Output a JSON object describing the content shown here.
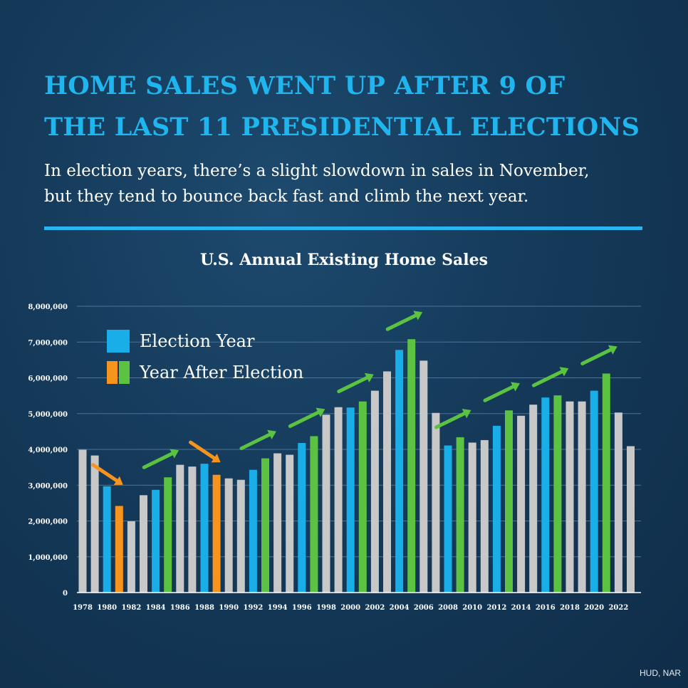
{
  "header": {
    "title_line1": "HOME SALES WENT UP AFTER 9 OF",
    "title_line2": "THE LAST 11 PRESIDENTIAL ELECTIONS",
    "subtitle_line1": "In election years, there’s a slight slowdown in sales in November,",
    "subtitle_line2": "but they tend to bounce back fast and climb the next year."
  },
  "legend": {
    "election_year": "Election Year",
    "year_after": "Year After Election"
  },
  "source": "HUD, NAR",
  "colors": {
    "normal": "#c8c8c8",
    "election": "#1aaee8",
    "after_up": "#5cc241",
    "after_down": "#f7941d",
    "title": "#1fb6f0"
  },
  "chart_data": {
    "type": "bar",
    "title": "U.S. Annual Existing Home Sales",
    "xlabel": "",
    "ylabel": "",
    "ylim": [
      0,
      8000000
    ],
    "y_ticks": [
      0,
      1000000,
      2000000,
      3000000,
      4000000,
      5000000,
      6000000,
      7000000,
      8000000
    ],
    "y_tick_labels": [
      "0",
      "1,000,000",
      "2,000,000",
      "3,000,000",
      "4,000,000",
      "5,000,000",
      "6,000,000",
      "7,000,000",
      "8,000,000"
    ],
    "x_tick_labels": [
      "1978",
      "1980",
      "1982",
      "1984",
      "1986",
      "1988",
      "1990",
      "1992",
      "1994",
      "1996",
      "1998",
      "2000",
      "2002",
      "2004",
      "2006",
      "2008",
      "2010",
      "2012",
      "2014",
      "2016",
      "2018",
      "2020",
      "2022"
    ],
    "grid": true,
    "categories": [
      1978,
      1979,
      1980,
      1981,
      1982,
      1983,
      1984,
      1985,
      1986,
      1987,
      1988,
      1989,
      1990,
      1991,
      1992,
      1993,
      1994,
      1995,
      1996,
      1997,
      1998,
      1999,
      2000,
      2001,
      2002,
      2003,
      2004,
      2005,
      2006,
      2007,
      2008,
      2009,
      2010,
      2011,
      2012,
      2013,
      2014,
      2015,
      2016,
      2017,
      2018,
      2019,
      2020,
      2021,
      2022,
      2023
    ],
    "values": [
      3990000,
      3830000,
      2970000,
      2420000,
      1990000,
      2720000,
      2870000,
      3220000,
      3570000,
      3520000,
      3600000,
      3290000,
      3190000,
      3150000,
      3430000,
      3750000,
      3890000,
      3850000,
      4180000,
      4370000,
      4970000,
      5180000,
      5170000,
      5340000,
      5640000,
      6180000,
      6780000,
      7080000,
      6480000,
      5020000,
      4110000,
      4340000,
      4190000,
      4260000,
      4660000,
      5090000,
      4940000,
      5250000,
      5450000,
      5510000,
      5340000,
      5340000,
      5640000,
      6120000,
      5030000,
      4090000
    ],
    "categories_type": [
      "normal",
      "normal",
      "election",
      "after_down",
      "normal",
      "normal",
      "election",
      "after_up",
      "normal",
      "normal",
      "election",
      "after_down",
      "normal",
      "normal",
      "election",
      "after_up",
      "normal",
      "normal",
      "election",
      "after_up",
      "normal",
      "normal",
      "election",
      "after_up",
      "normal",
      "normal",
      "election",
      "after_up",
      "normal",
      "normal",
      "election",
      "after_up",
      "normal",
      "normal",
      "election",
      "after_up",
      "normal",
      "normal",
      "election",
      "after_up",
      "normal",
      "normal",
      "election",
      "after_up",
      "normal",
      "normal"
    ],
    "annotations": [
      {
        "from_year": 1980,
        "direction": "down"
      },
      {
        "from_year": 1984,
        "direction": "up"
      },
      {
        "from_year": 1988,
        "direction": "down"
      },
      {
        "from_year": 1992,
        "direction": "up"
      },
      {
        "from_year": 1996,
        "direction": "up"
      },
      {
        "from_year": 2000,
        "direction": "up"
      },
      {
        "from_year": 2004,
        "direction": "up"
      },
      {
        "from_year": 2008,
        "direction": "up"
      },
      {
        "from_year": 2012,
        "direction": "up"
      },
      {
        "from_year": 2016,
        "direction": "up"
      },
      {
        "from_year": 2020,
        "direction": "up"
      }
    ]
  }
}
